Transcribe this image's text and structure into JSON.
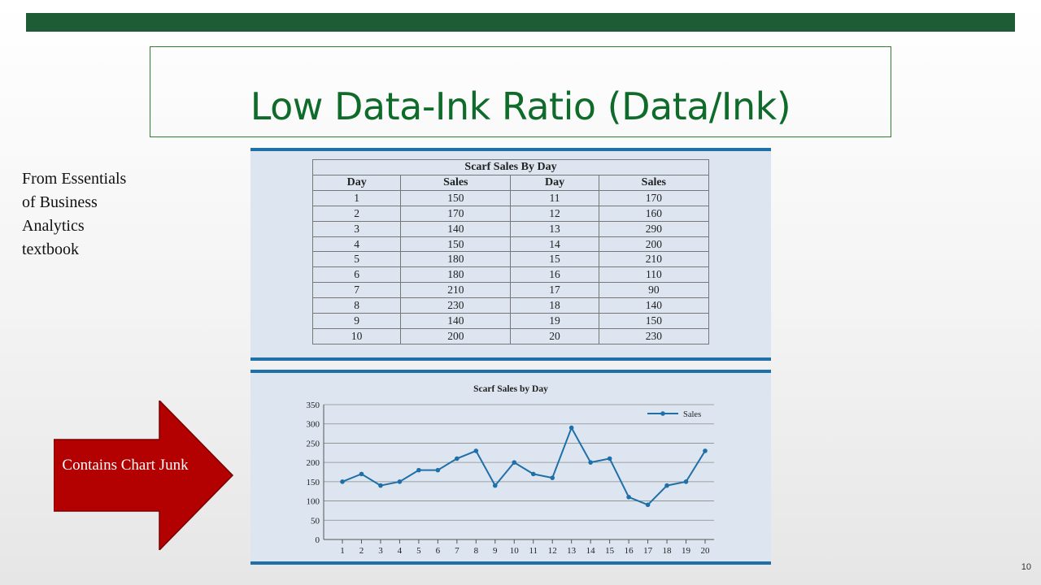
{
  "slide": {
    "title": "Low Data-Ink Ratio (Data/Ink)",
    "source_note": "From Essentials of Business Analytics textbook",
    "callout": "Contains Chart Junk",
    "page_number": "10",
    "colors": {
      "top_bar": "#1e5c35",
      "title": "#0f6b2a",
      "callout": "#b30000",
      "panel": "#dde6f0",
      "line": "#1f6fa8"
    }
  },
  "table": {
    "title": "Scarf Sales By Day",
    "headers": [
      "Day",
      "Sales",
      "Day",
      "Sales"
    ],
    "rows": [
      [
        "1",
        "150",
        "11",
        "170"
      ],
      [
        "2",
        "170",
        "12",
        "160"
      ],
      [
        "3",
        "140",
        "13",
        "290"
      ],
      [
        "4",
        "150",
        "14",
        "200"
      ],
      [
        "5",
        "180",
        "15",
        "210"
      ],
      [
        "6",
        "180",
        "16",
        "110"
      ],
      [
        "7",
        "210",
        "17",
        "90"
      ],
      [
        "8",
        "230",
        "18",
        "140"
      ],
      [
        "9",
        "140",
        "19",
        "150"
      ],
      [
        "10",
        "200",
        "20",
        "230"
      ]
    ]
  },
  "chart_data": {
    "type": "line",
    "title": "Scarf Sales by Day",
    "x": [
      1,
      2,
      3,
      4,
      5,
      6,
      7,
      8,
      9,
      10,
      11,
      12,
      13,
      14,
      15,
      16,
      17,
      18,
      19,
      20
    ],
    "series": [
      {
        "name": "Sales",
        "values": [
          150,
          170,
          140,
          150,
          180,
          180,
          210,
          230,
          140,
          200,
          170,
          160,
          290,
          200,
          210,
          110,
          90,
          140,
          150,
          230
        ]
      }
    ],
    "ylim": [
      0,
      350
    ],
    "yticks": [
      0,
      50,
      100,
      150,
      200,
      250,
      300,
      350
    ],
    "grid": true,
    "legend": "top-right",
    "xlabel": "",
    "ylabel": ""
  }
}
